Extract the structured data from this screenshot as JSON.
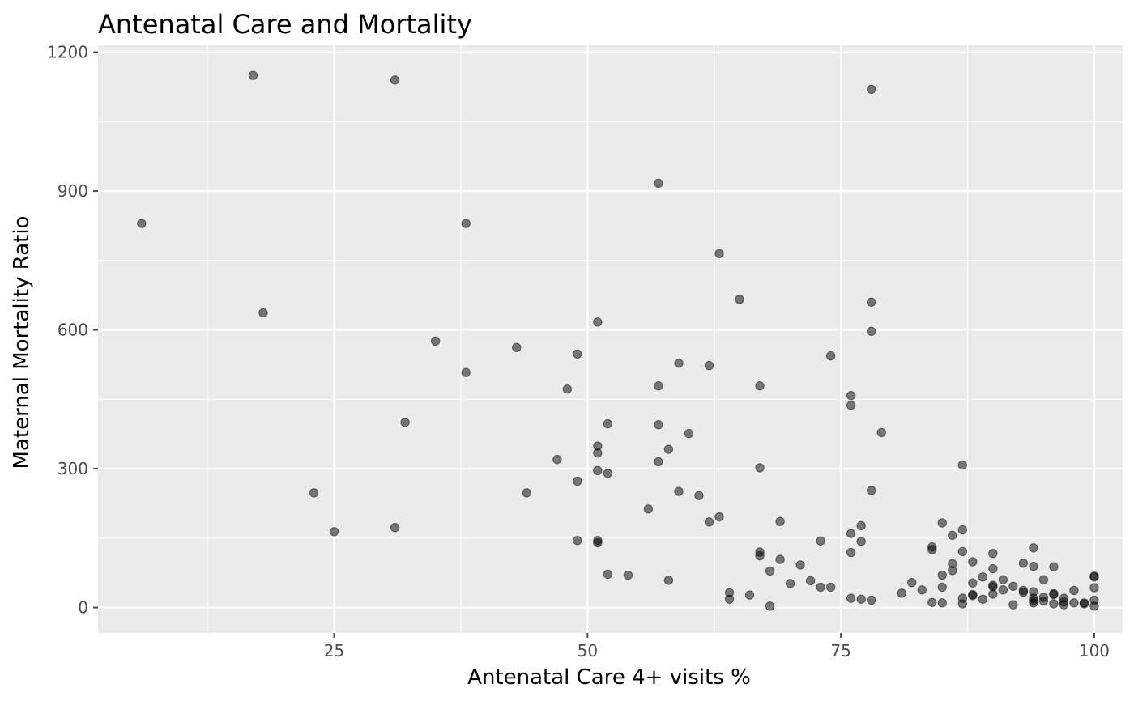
{
  "chart_data": {
    "type": "scatter",
    "title": "Antenatal Care and Mortality",
    "xlabel": "Antenatal Care 4+ visits %",
    "ylabel": "Maternal Mortality Ratio",
    "xlim": [
      1.7,
      102.8
    ],
    "ylim": [
      -55,
      1215
    ],
    "x_ticks": [
      25,
      50,
      75,
      100
    ],
    "x_minor_ticks": [
      12.5,
      37.5,
      62.5,
      87.5
    ],
    "y_ticks": [
      0,
      300,
      600,
      900,
      1200
    ],
    "y_minor_ticks": [
      150,
      450,
      750,
      1050
    ],
    "x_tick_labels": [
      "25",
      "50",
      "75",
      "100"
    ],
    "y_tick_labels": [
      "0",
      "300",
      "600",
      "900",
      "1200"
    ],
    "grid": true,
    "legend": "none",
    "colors": {
      "panel": "#ebebeb",
      "grid": "#ffffff",
      "point": "#000000",
      "tick": "#4d4d4d"
    },
    "point_opacity": 0.5,
    "points": [
      [
        6,
        830
      ],
      [
        17,
        1150
      ],
      [
        18,
        637
      ],
      [
        23,
        248
      ],
      [
        25,
        164
      ],
      [
        31,
        1140
      ],
      [
        31,
        173
      ],
      [
        32,
        400
      ],
      [
        35,
        576
      ],
      [
        38,
        830
      ],
      [
        38,
        508
      ],
      [
        43,
        562
      ],
      [
        44,
        248
      ],
      [
        47,
        320
      ],
      [
        48,
        472
      ],
      [
        49,
        548
      ],
      [
        49,
        273
      ],
      [
        49,
        145
      ],
      [
        51,
        617
      ],
      [
        51,
        349
      ],
      [
        51,
        334
      ],
      [
        51,
        296
      ],
      [
        51,
        145
      ],
      [
        51,
        140
      ],
      [
        52,
        397
      ],
      [
        52,
        290
      ],
      [
        52,
        72
      ],
      [
        54,
        70
      ],
      [
        56,
        213
      ],
      [
        57,
        917
      ],
      [
        57,
        479
      ],
      [
        57,
        395
      ],
      [
        57,
        315
      ],
      [
        58,
        342
      ],
      [
        58,
        59
      ],
      [
        59,
        528
      ],
      [
        59,
        251
      ],
      [
        60,
        376
      ],
      [
        61,
        242
      ],
      [
        62,
        523
      ],
      [
        62,
        185
      ],
      [
        63,
        765
      ],
      [
        63,
        196
      ],
      [
        64,
        32
      ],
      [
        64,
        18
      ],
      [
        65,
        666
      ],
      [
        66,
        27
      ],
      [
        67,
        479
      ],
      [
        67,
        302
      ],
      [
        67,
        120
      ],
      [
        67,
        112
      ],
      [
        68,
        79
      ],
      [
        68,
        3
      ],
      [
        69,
        186
      ],
      [
        69,
        104
      ],
      [
        70,
        52
      ],
      [
        71,
        92
      ],
      [
        72,
        58
      ],
      [
        73,
        144
      ],
      [
        73,
        44
      ],
      [
        74,
        544
      ],
      [
        74,
        44
      ],
      [
        76,
        458
      ],
      [
        76,
        437
      ],
      [
        76,
        160
      ],
      [
        76,
        119
      ],
      [
        76,
        20
      ],
      [
        77,
        177
      ],
      [
        77,
        143
      ],
      [
        77,
        18
      ],
      [
        78,
        1120
      ],
      [
        78,
        660
      ],
      [
        78,
        597
      ],
      [
        78,
        253
      ],
      [
        78,
        16
      ],
      [
        79,
        378
      ],
      [
        81,
        31
      ],
      [
        82,
        54
      ],
      [
        83,
        38
      ],
      [
        84,
        131
      ],
      [
        84,
        125
      ],
      [
        84,
        11
      ],
      [
        85,
        183
      ],
      [
        85,
        70
      ],
      [
        85,
        44
      ],
      [
        85,
        10
      ],
      [
        86,
        156
      ],
      [
        86,
        95
      ],
      [
        86,
        80
      ],
      [
        87,
        308
      ],
      [
        87,
        168
      ],
      [
        87,
        121
      ],
      [
        87,
        20
      ],
      [
        87,
        8
      ],
      [
        88,
        99
      ],
      [
        88,
        53
      ],
      [
        88,
        28
      ],
      [
        88,
        26
      ],
      [
        89,
        66
      ],
      [
        89,
        18
      ],
      [
        90,
        117
      ],
      [
        90,
        84
      ],
      [
        90,
        48
      ],
      [
        90,
        45
      ],
      [
        90,
        29
      ],
      [
        91,
        60
      ],
      [
        91,
        38
      ],
      [
        92,
        46
      ],
      [
        92,
        6
      ],
      [
        93,
        96
      ],
      [
        93,
        37
      ],
      [
        93,
        33
      ],
      [
        94,
        129
      ],
      [
        94,
        89
      ],
      [
        94,
        34
      ],
      [
        94,
        20
      ],
      [
        94,
        15
      ],
      [
        94,
        10
      ],
      [
        95,
        60
      ],
      [
        95,
        22
      ],
      [
        95,
        14
      ],
      [
        96,
        88
      ],
      [
        96,
        30
      ],
      [
        96,
        28
      ],
      [
        96,
        8
      ],
      [
        97,
        20
      ],
      [
        97,
        12
      ],
      [
        97,
        6
      ],
      [
        98,
        37
      ],
      [
        98,
        10
      ],
      [
        99,
        10
      ],
      [
        99,
        8
      ],
      [
        100,
        68
      ],
      [
        100,
        66
      ],
      [
        100,
        43
      ],
      [
        100,
        16
      ],
      [
        100,
        3
      ]
    ]
  }
}
